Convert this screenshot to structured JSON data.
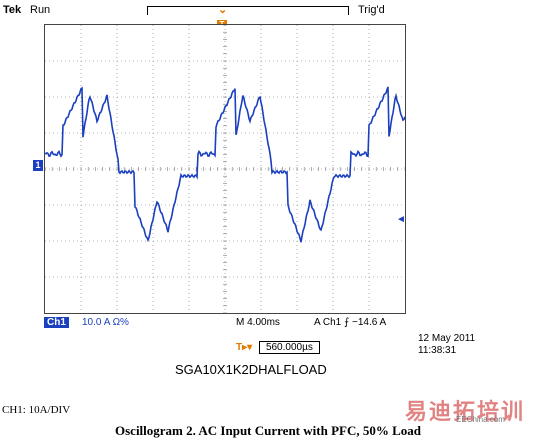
{
  "header": {
    "brand": "Tek",
    "run_state": "Run",
    "trigger_state": "Trig'd",
    "trigger_position_marker": "T",
    "trigger_level_marker": "T"
  },
  "channel": {
    "marker": "1",
    "right_marker": "◄",
    "badge": "Ch1",
    "scale": "10.0 A Ω%"
  },
  "readout": {
    "timebase": "M 4.00ms",
    "trigger": "A  Ch1  ⨍  −14.6 A",
    "hpos_icon": "T▸▾",
    "hpos_value": "560.000µs"
  },
  "timestamp": {
    "date": "12 May 2011",
    "time": "11:38:31"
  },
  "capture_name": "SGA10X1K2DHALFLOAD",
  "channel_note": "CH1: 10A/DIV",
  "caption": "Oscillogram 2. AC Input Current with PFC, 50% Load",
  "watermarks": {
    "site": "EEChina.com",
    "cn": "易迪拓培训"
  },
  "colors": {
    "trace": "#1a3fbf",
    "trigger": "#e07a00",
    "grid": "#777777"
  }
}
